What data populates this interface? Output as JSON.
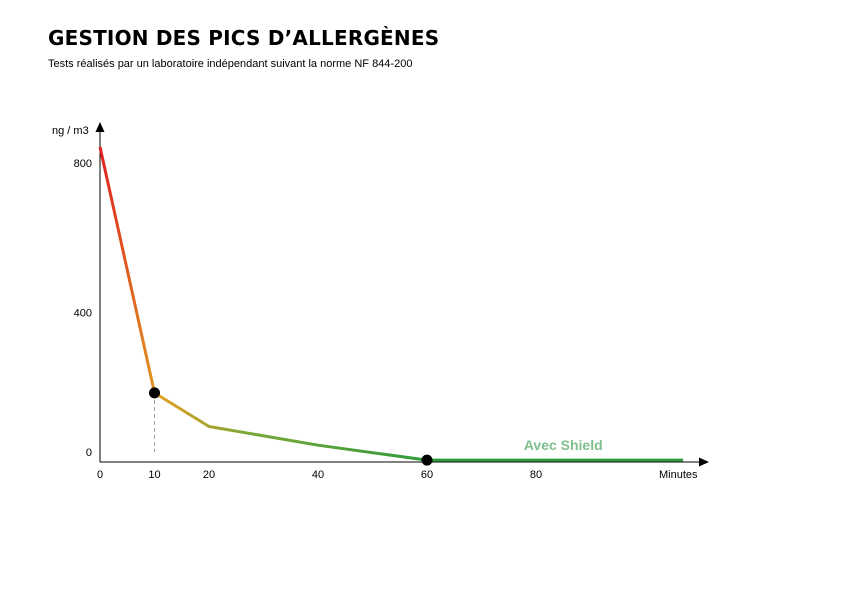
{
  "header": {
    "title": "GESTION DES PICS D’ALLERGÈNES",
    "subtitle": "Tests réalisés par un laboratoire indépendant suivant la norme NF 844-200"
  },
  "chart_data": {
    "type": "line",
    "title": "GESTION DES PICS D’ALLERGÈNES",
    "subtitle": "Tests réalisés par un laboratoire indépendant suivant la norme NF 844-200",
    "ylabel": "ng / m3",
    "xlabel": "Minutes",
    "x_ticks": [
      0,
      10,
      20,
      40,
      60,
      80
    ],
    "y_ticks": [
      0,
      400,
      800
    ],
    "xlim": [
      0,
      108
    ],
    "ylim": [
      0,
      900
    ],
    "grid": false,
    "series": [
      {
        "name": "",
        "x": [
          0,
          10,
          20,
          40,
          60,
          107
        ],
        "y": [
          843,
          185,
          95,
          45,
          5,
          5
        ]
      }
    ],
    "markers": [
      {
        "x": 10,
        "y": 185
      },
      {
        "x": 60,
        "y": 5
      }
    ],
    "annotations": [
      {
        "text": "Avec Shield",
        "x": 85,
        "y": 45,
        "color": "#7fbf8e"
      }
    ],
    "colors": {
      "start": "#e02020",
      "mid": "#e0a020",
      "end": "#2e9a3c",
      "annotation": "#7fbf8e"
    }
  }
}
